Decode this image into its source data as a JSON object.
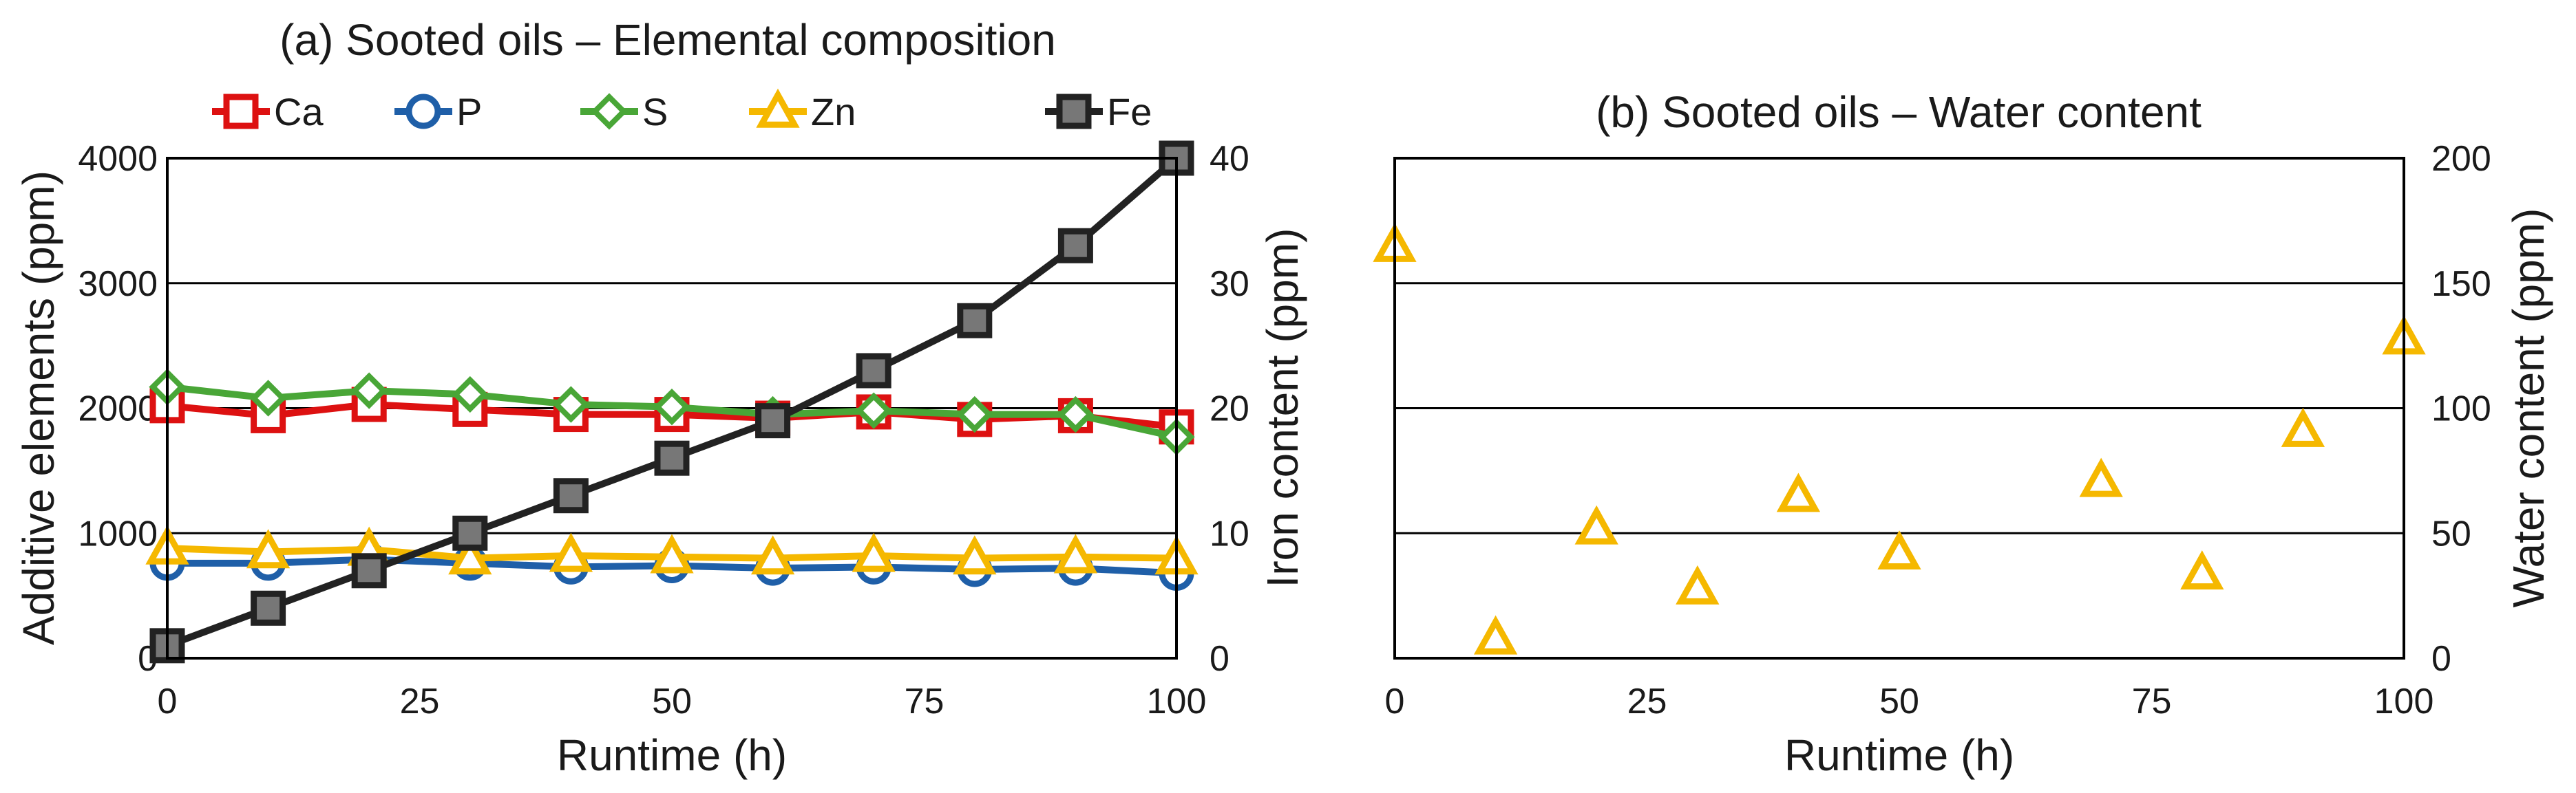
{
  "chart_data": [
    {
      "type": "line",
      "title": "(a) Sooted oils – Elemental composition",
      "xlabel": "Runtime (h)",
      "ylabel": "Additive elements (ppm)",
      "y2label": "Iron content (ppm)",
      "xlim": [
        0,
        100
      ],
      "ylim": [
        0,
        4000
      ],
      "y2lim": [
        0,
        40
      ],
      "xticks": [
        "0",
        "25",
        "50",
        "75",
        "100"
      ],
      "yticks": [
        "0",
        "1000",
        "2000",
        "3000",
        "4000"
      ],
      "y2ticks": [
        "0",
        "10",
        "20",
        "30",
        "40"
      ],
      "grid": "horizontal",
      "legend_position": "top",
      "x": [
        0,
        10,
        20,
        30,
        40,
        50,
        60,
        70,
        80,
        90,
        100
      ],
      "series": [
        {
          "name": "Ca",
          "axis": "left",
          "marker": "square",
          "color": "#dd1111",
          "values": [
            2020,
            1940,
            2030,
            1990,
            1950,
            1950,
            1920,
            1970,
            1910,
            1940,
            1850
          ]
        },
        {
          "name": "P",
          "axis": "left",
          "marker": "circle",
          "color": "#1f5fa8",
          "values": [
            760,
            760,
            790,
            760,
            730,
            740,
            720,
            730,
            710,
            720,
            680
          ]
        },
        {
          "name": "S",
          "axis": "left",
          "marker": "diamond",
          "color": "#49a637",
          "values": [
            2170,
            2080,
            2140,
            2110,
            2030,
            2010,
            1950,
            1980,
            1950,
            1950,
            1770
          ]
        },
        {
          "name": "Zn",
          "axis": "left",
          "marker": "triangle",
          "color": "#f5b800",
          "values": [
            880,
            850,
            870,
            800,
            820,
            810,
            800,
            820,
            800,
            810,
            800
          ]
        },
        {
          "name": "Fe",
          "axis": "right",
          "marker": "filled-square",
          "color": "#222222",
          "values": [
            1,
            4,
            7,
            10,
            13,
            16,
            19,
            23,
            27,
            33,
            40
          ]
        }
      ]
    },
    {
      "type": "scatter",
      "title": "(b) Sooted oils – Water content",
      "xlabel": "Runtime (h)",
      "ylabel": "",
      "y2label": "Water content (ppm)",
      "xlim": [
        0,
        100
      ],
      "y2lim": [
        0,
        200
      ],
      "xticks": [
        "0",
        "25",
        "50",
        "75",
        "100"
      ],
      "y2ticks": [
        "0",
        "50",
        "100",
        "150",
        "200"
      ],
      "grid": "horizontal",
      "x": [
        0,
        10,
        20,
        30,
        40,
        50,
        70,
        80,
        90,
        100
      ],
      "series": [
        {
          "name": "Water",
          "axis": "right",
          "marker": "triangle",
          "color": "#f5b800",
          "values": [
            165,
            8,
            52,
            28,
            65,
            42,
            71,
            34,
            91,
            128
          ]
        }
      ]
    }
  ]
}
